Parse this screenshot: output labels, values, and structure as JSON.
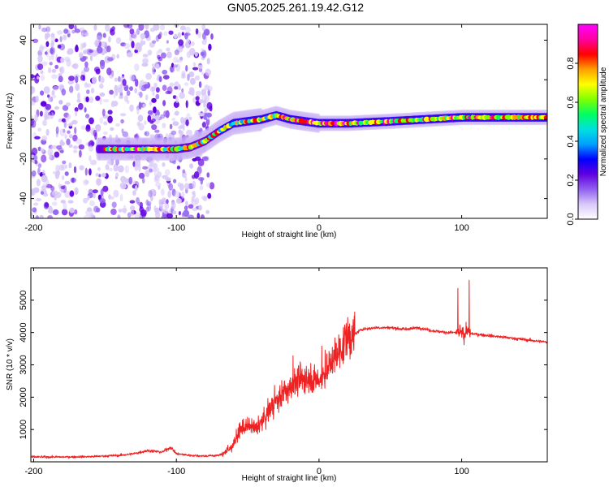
{
  "figure": {
    "title": "GN05.2025.261.19.42.G12"
  },
  "chart_data": [
    {
      "type": "heatmap",
      "name": "spectrogram",
      "xlabel": "Height of straight line (km)",
      "ylabel": "Frequency (Hz)",
      "xlim": [
        -202,
        160
      ],
      "ylim": [
        -50,
        48
      ],
      "xticks": [
        -200,
        -100,
        0,
        100
      ],
      "xtick_labels": [
        "-200",
        "-100",
        "0",
        "100"
      ],
      "yticks": [
        -40,
        -20,
        0,
        20,
        40
      ],
      "ytick_labels": [
        "-40",
        "-20",
        "0",
        "20",
        "40"
      ],
      "ridge_x": [
        -150,
        -120,
        -100,
        -90,
        -80,
        -70,
        -60,
        -50,
        -40,
        -30,
        -20,
        -10,
        0,
        20,
        50,
        100,
        160
      ],
      "ridge_y": [
        -15,
        -15,
        -15,
        -14,
        -11,
        -6,
        -2,
        -1,
        0,
        2,
        0,
        -1,
        -2,
        -2,
        -1,
        1,
        1
      ],
      "noise_region_x": [
        -202,
        -75
      ],
      "colorbar": {
        "label": "Normalized spectral amplitude",
        "range": [
          0,
          1
        ],
        "ticks": [
          "0.0",
          "0.2",
          "0.4",
          "0.6",
          "0.8"
        ],
        "tick_values": [
          0.0,
          0.2,
          0.4,
          0.6,
          0.8
        ],
        "colors": [
          "#ffffff",
          "#d8c8f8",
          "#9060f0",
          "#6000e0",
          "#0000ff",
          "#00a0ff",
          "#00e0e0",
          "#00ff60",
          "#80ff00",
          "#ffff00",
          "#ffa000",
          "#ff0000",
          "#ff00a0",
          "#ff00ff"
        ]
      }
    },
    {
      "type": "line",
      "name": "snr",
      "xlabel": "Height of straight line (km)",
      "ylabel": "SNR (10 * v/v)",
      "xlim": [
        -202,
        160
      ],
      "ylim": [
        0,
        6000
      ],
      "xticks": [
        -200,
        -100,
        0,
        100
      ],
      "xtick_labels": [
        "-200",
        "-100",
        "0",
        "100"
      ],
      "yticks": [
        1000,
        2000,
        3000,
        4000,
        5000
      ],
      "ytick_labels": [
        "1000",
        "2000",
        "3000",
        "4000",
        "5000"
      ],
      "color": "#ee2222",
      "x": [
        -202,
        -180,
        -160,
        -140,
        -130,
        -120,
        -110,
        -104,
        -100,
        -90,
        -80,
        -70,
        -62,
        -55,
        -50,
        -45,
        -40,
        -35,
        -30,
        -25,
        -20,
        -15,
        -10,
        -5,
        0,
        5,
        10,
        20,
        30,
        40,
        50,
        60,
        70,
        80,
        90,
        100,
        110,
        120,
        140,
        160
      ],
      "y": [
        150,
        150,
        160,
        200,
        250,
        350,
        300,
        450,
        250,
        200,
        180,
        200,
        400,
        1000,
        1100,
        1000,
        1200,
        1600,
        1900,
        2100,
        2300,
        2500,
        2600,
        2600,
        2500,
        2800,
        3200,
        3800,
        4100,
        4150,
        4150,
        4100,
        4150,
        4050,
        4000,
        4000,
        3950,
        3900,
        3800,
        3700
      ]
    }
  ]
}
